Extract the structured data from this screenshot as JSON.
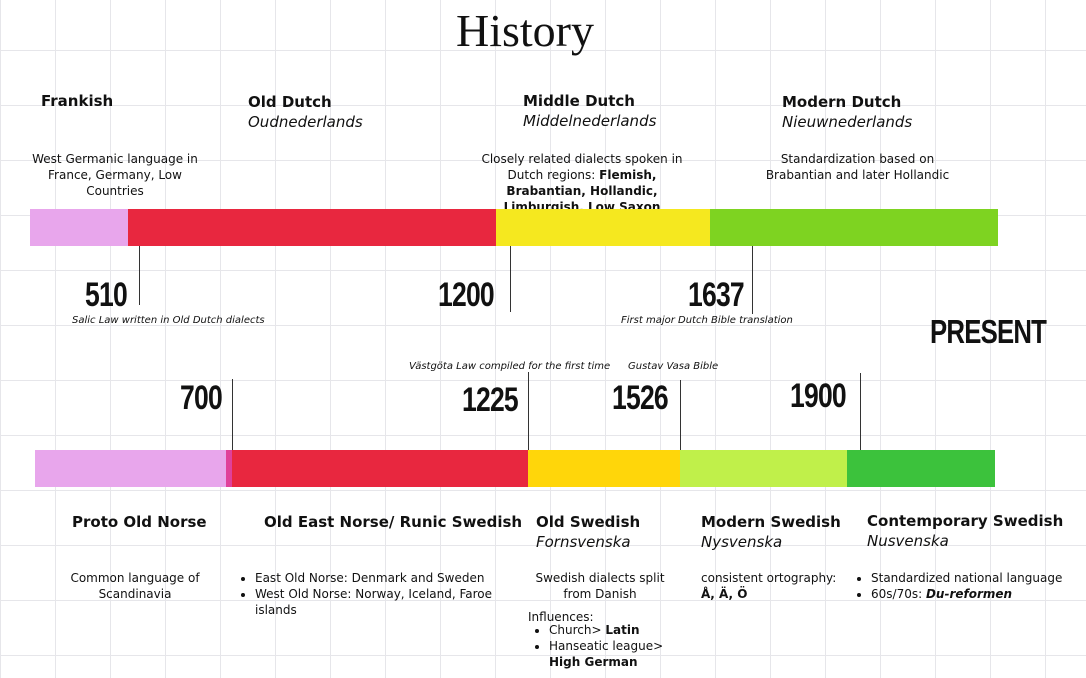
{
  "title": "History",
  "dutch": {
    "periods": [
      {
        "name": "Frankish",
        "description": "West Germanic language in France, Germany, Low Countries"
      },
      {
        "name": "Old Dutch",
        "native": "Oudnederlands"
      },
      {
        "name": "Middle Dutch",
        "native": "Middelnederlands",
        "description": "Closely related dialects spoken in Dutch regions:",
        "description_bold": "Flemish, Brabantian, Hollandic, Limburgish, Low Saxon"
      },
      {
        "name": "Modern Dutch",
        "native": "Nieuwnederlands",
        "description": "Standardization based on Brabantian and later Hollandic"
      }
    ],
    "years": [
      {
        "year": "510",
        "note": "Salic Law written in Old Dutch dialects"
      },
      {
        "year": "1200"
      },
      {
        "year": "1637",
        "note": "First major Dutch Bible translation"
      }
    ]
  },
  "present": "PRESENT",
  "swedish": {
    "years": [
      {
        "year": "700"
      },
      {
        "year": "1225",
        "note": "Västgöta Law compiled for the first time"
      },
      {
        "year": "1526",
        "note": "Gustav Vasa Bible"
      },
      {
        "year": "1900"
      }
    ],
    "periods": [
      {
        "name": "Proto Old Norse",
        "description": "Common language of Scandinavia"
      },
      {
        "name": "Old East Norse/ Runic Swedish",
        "bullets": [
          "East Old Norse: Denmark and Sweden",
          "West Old Norse: Norway, Iceland, Faroe islands"
        ]
      },
      {
        "name": "Old Swedish",
        "native": "Fornsvenska",
        "description": "Swedish dialects split from Danish",
        "influences_label": "Influences:",
        "influences": [
          {
            "text": "Church>",
            "bold": "Latin"
          },
          {
            "text": "Hanseatic league>",
            "bold": "High German"
          }
        ]
      },
      {
        "name": "Modern Swedish",
        "native": "Nysvenska",
        "description": "consistent ortography:",
        "description_bold": "Å, Ä, Ö"
      },
      {
        "name": "Contemporary Swedish",
        "native": "Nusvenska",
        "bullets": [
          "Standardized national language"
        ],
        "bullet_prefix": "60s/70s:",
        "bullet_bold": "Du-reformen"
      }
    ]
  }
}
